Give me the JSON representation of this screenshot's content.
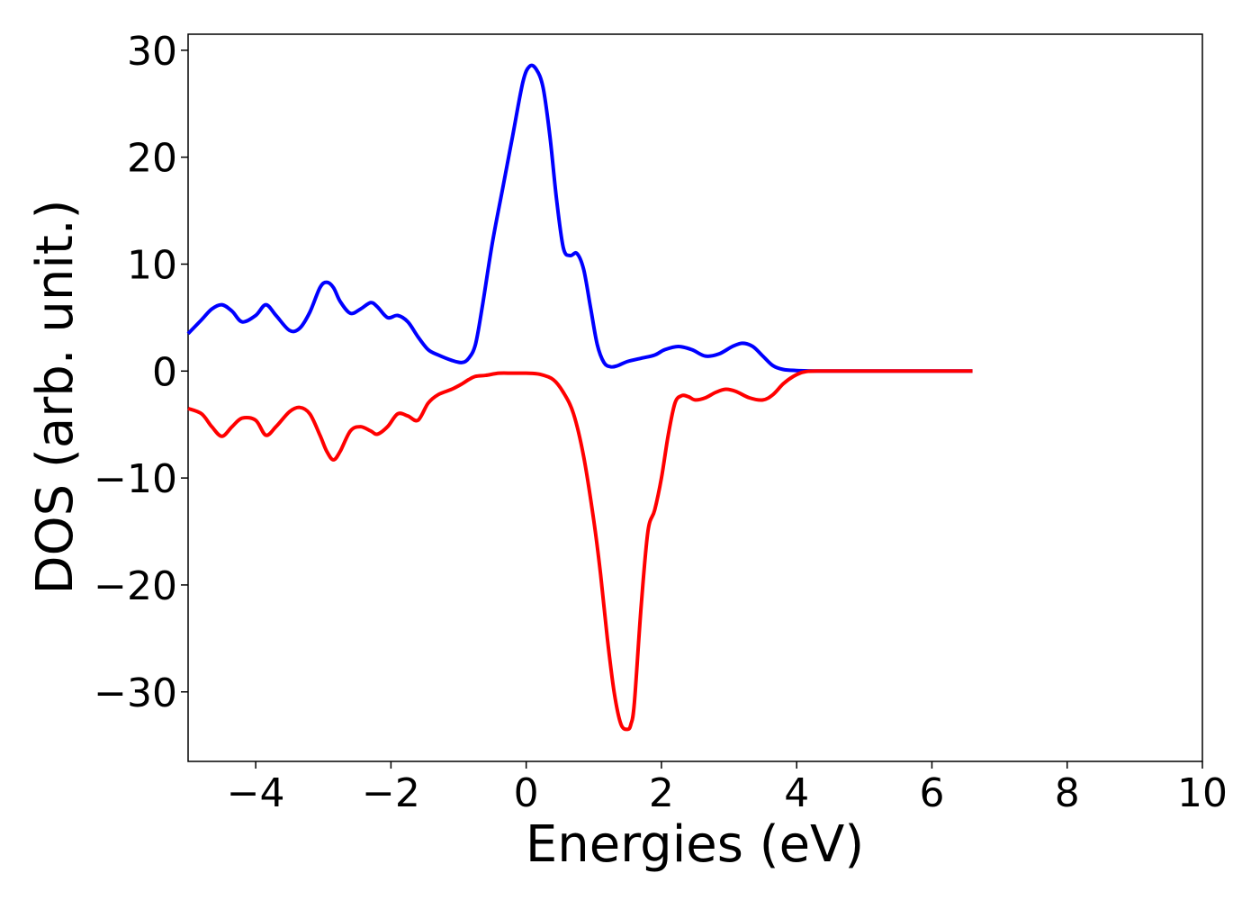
{
  "chart_data": {
    "type": "line",
    "title": "",
    "xlabel": "Energies (eV)",
    "ylabel": "DOS (arb. unit.)",
    "xlim": [
      -5,
      10
    ],
    "ylim": [
      -36.5,
      31.5
    ],
    "grid": false,
    "legend": "none",
    "x_ticks": [
      -4,
      -2,
      0,
      2,
      4,
      6,
      8,
      10
    ],
    "x_tick_labels": [
      "−4",
      "−2",
      "0",
      "2",
      "4",
      "6",
      "8",
      "10"
    ],
    "y_ticks": [
      30,
      20,
      10,
      0,
      -10,
      -20,
      -30
    ],
    "y_tick_labels": [
      "30",
      "20",
      "10",
      "0",
      "−10",
      "−20",
      "−30"
    ],
    "series": [
      {
        "color": "#0000ff",
        "x": [
          -5.0,
          -4.8,
          -4.65,
          -4.5,
          -4.35,
          -4.2,
          -4.0,
          -3.85,
          -3.7,
          -3.5,
          -3.35,
          -3.2,
          -3.05,
          -2.95,
          -2.85,
          -2.75,
          -2.6,
          -2.45,
          -2.3,
          -2.2,
          -2.05,
          -1.9,
          -1.75,
          -1.6,
          -1.45,
          -1.3,
          -1.1,
          -0.95,
          -0.85,
          -0.75,
          -0.65,
          -0.5,
          -0.35,
          -0.2,
          -0.05,
          0.05,
          0.15,
          0.25,
          0.35,
          0.45,
          0.55,
          0.65,
          0.75,
          0.85,
          0.95,
          1.05,
          1.15,
          1.25,
          1.35,
          1.5,
          1.7,
          1.9,
          2.05,
          2.25,
          2.45,
          2.65,
          2.85,
          3.05,
          3.2,
          3.35,
          3.5,
          3.65,
          3.8,
          4.0,
          4.3,
          5.0,
          6.0,
          6.6
        ],
        "y": [
          3.5,
          4.8,
          5.8,
          6.2,
          5.6,
          4.6,
          5.2,
          6.2,
          5.2,
          3.8,
          4.0,
          5.5,
          7.8,
          8.3,
          7.8,
          6.5,
          5.4,
          5.8,
          6.4,
          6.0,
          5.0,
          5.2,
          4.6,
          3.2,
          2.0,
          1.5,
          1.0,
          0.8,
          1.2,
          2.5,
          6.0,
          12.0,
          17.0,
          22.0,
          27.0,
          28.5,
          28.2,
          26.5,
          22.0,
          16.0,
          11.5,
          10.8,
          11.0,
          9.5,
          6.0,
          2.5,
          0.8,
          0.4,
          0.5,
          0.9,
          1.2,
          1.5,
          2.0,
          2.3,
          2.0,
          1.4,
          1.6,
          2.3,
          2.6,
          2.3,
          1.4,
          0.5,
          0.15,
          0.05,
          0.0,
          0.0,
          0.0,
          0.0
        ]
      },
      {
        "color": "#ff0000",
        "x": [
          -5.0,
          -4.8,
          -4.65,
          -4.5,
          -4.35,
          -4.2,
          -4.0,
          -3.85,
          -3.7,
          -3.5,
          -3.35,
          -3.2,
          -3.05,
          -2.95,
          -2.85,
          -2.75,
          -2.6,
          -2.45,
          -2.3,
          -2.2,
          -2.05,
          -1.9,
          -1.75,
          -1.6,
          -1.45,
          -1.3,
          -1.1,
          -0.95,
          -0.85,
          -0.75,
          -0.6,
          -0.4,
          -0.2,
          0.0,
          0.2,
          0.4,
          0.55,
          0.7,
          0.85,
          1.0,
          1.1,
          1.2,
          1.3,
          1.4,
          1.5,
          1.55,
          1.6,
          1.7,
          1.8,
          1.9,
          2.0,
          2.1,
          2.2,
          2.3,
          2.4,
          2.5,
          2.65,
          2.8,
          2.95,
          3.1,
          3.3,
          3.5,
          3.65,
          3.8,
          3.95,
          4.1,
          4.3,
          5.0,
          6.0,
          6.6
        ],
        "y": [
          -3.5,
          -4.0,
          -5.2,
          -6.1,
          -5.2,
          -4.4,
          -4.6,
          -6.0,
          -5.2,
          -3.8,
          -3.4,
          -4.0,
          -6.0,
          -7.5,
          -8.3,
          -7.5,
          -5.6,
          -5.2,
          -5.6,
          -5.9,
          -5.2,
          -4.0,
          -4.2,
          -4.6,
          -3.0,
          -2.2,
          -1.7,
          -1.2,
          -0.8,
          -0.5,
          -0.4,
          -0.2,
          -0.2,
          -0.2,
          -0.3,
          -0.8,
          -2.0,
          -4.0,
          -8.0,
          -14.0,
          -19.0,
          -25.0,
          -30.0,
          -33.0,
          -33.5,
          -33.0,
          -31.0,
          -22.0,
          -15.0,
          -13.0,
          -10.0,
          -6.0,
          -3.0,
          -2.3,
          -2.4,
          -2.7,
          -2.5,
          -2.0,
          -1.7,
          -1.9,
          -2.5,
          -2.7,
          -2.2,
          -1.2,
          -0.5,
          -0.1,
          0.0,
          0.0,
          0.0,
          0.0
        ]
      }
    ]
  }
}
